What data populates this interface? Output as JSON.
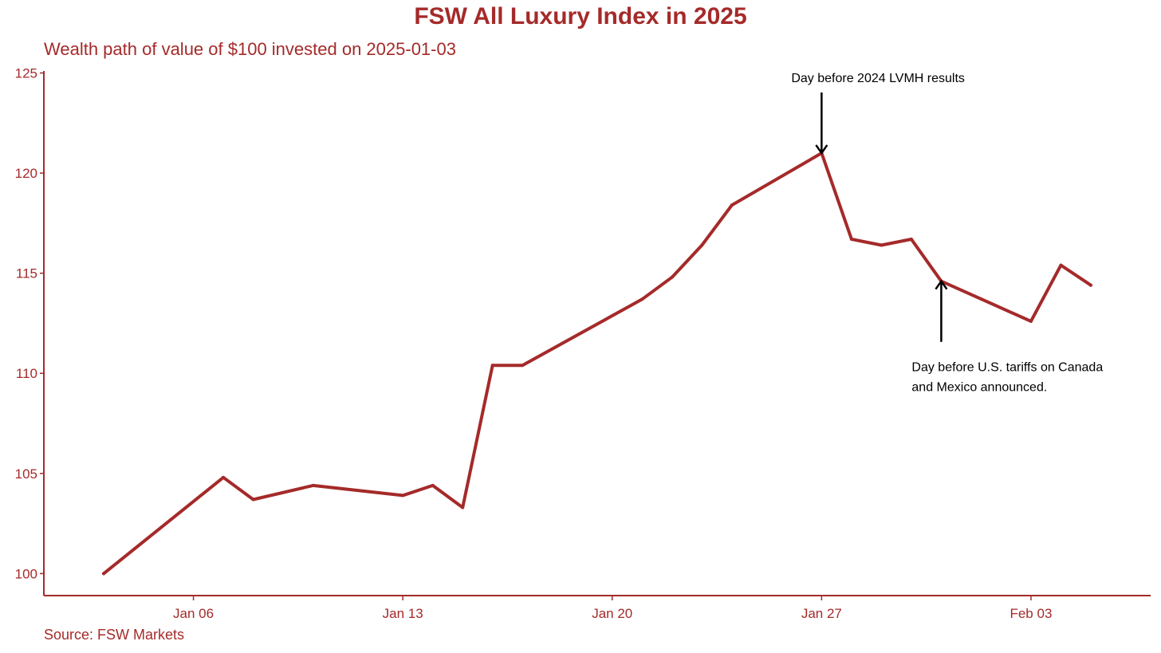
{
  "colors": {
    "accent": "#A52A2A",
    "annotation": "#000000",
    "background": "#FFFFFF"
  },
  "chart_data": {
    "type": "line",
    "title": "FSW All Luxury Index in 2025",
    "subtitle": "Wealth path of value of $100 invested on 2025-01-03",
    "caption": "Source: FSW Markets",
    "xlabel": "",
    "ylabel": "",
    "x_tick_labels": [
      "Jan 06",
      "Jan 13",
      "Jan 20",
      "Jan 27",
      "Feb 03"
    ],
    "x_tick_dates": [
      "2025-01-06",
      "2025-01-13",
      "2025-01-20",
      "2025-01-27",
      "2025-02-03"
    ],
    "xlim": [
      "2025-01-01",
      "2025-02-07"
    ],
    "y_ticks": [
      100,
      105,
      110,
      115,
      120,
      125
    ],
    "ylim": [
      98.9,
      125.1
    ],
    "grid": false,
    "series": [
      {
        "x": [
          "2025-01-03",
          "2025-01-07",
          "2025-01-08",
          "2025-01-10",
          "2025-01-13",
          "2025-01-14",
          "2025-01-15",
          "2025-01-16",
          "2025-01-17",
          "2025-01-21",
          "2025-01-22",
          "2025-01-23",
          "2025-01-24",
          "2025-01-27",
          "2025-01-28",
          "2025-01-29",
          "2025-01-30",
          "2025-01-31",
          "2025-02-03",
          "2025-02-04",
          "2025-02-05"
        ],
        "values": [
          100.0,
          104.8,
          103.7,
          104.4,
          103.9,
          104.4,
          103.3,
          110.4,
          110.4,
          113.7,
          114.8,
          116.4,
          118.4,
          121.0,
          116.7,
          116.4,
          116.7,
          114.6,
          112.6,
          115.4,
          114.4
        ]
      }
    ],
    "annotations": [
      {
        "text": [
          "Day before 2024 LVMH results"
        ],
        "x": "2025-01-27",
        "y": 121.0,
        "arrow": "down"
      },
      {
        "text": [
          "Day before U.S. tariffs on Canada",
          "and Mexico announced."
        ],
        "x": "2025-01-31",
        "y": 114.6,
        "arrow": "up"
      }
    ]
  }
}
